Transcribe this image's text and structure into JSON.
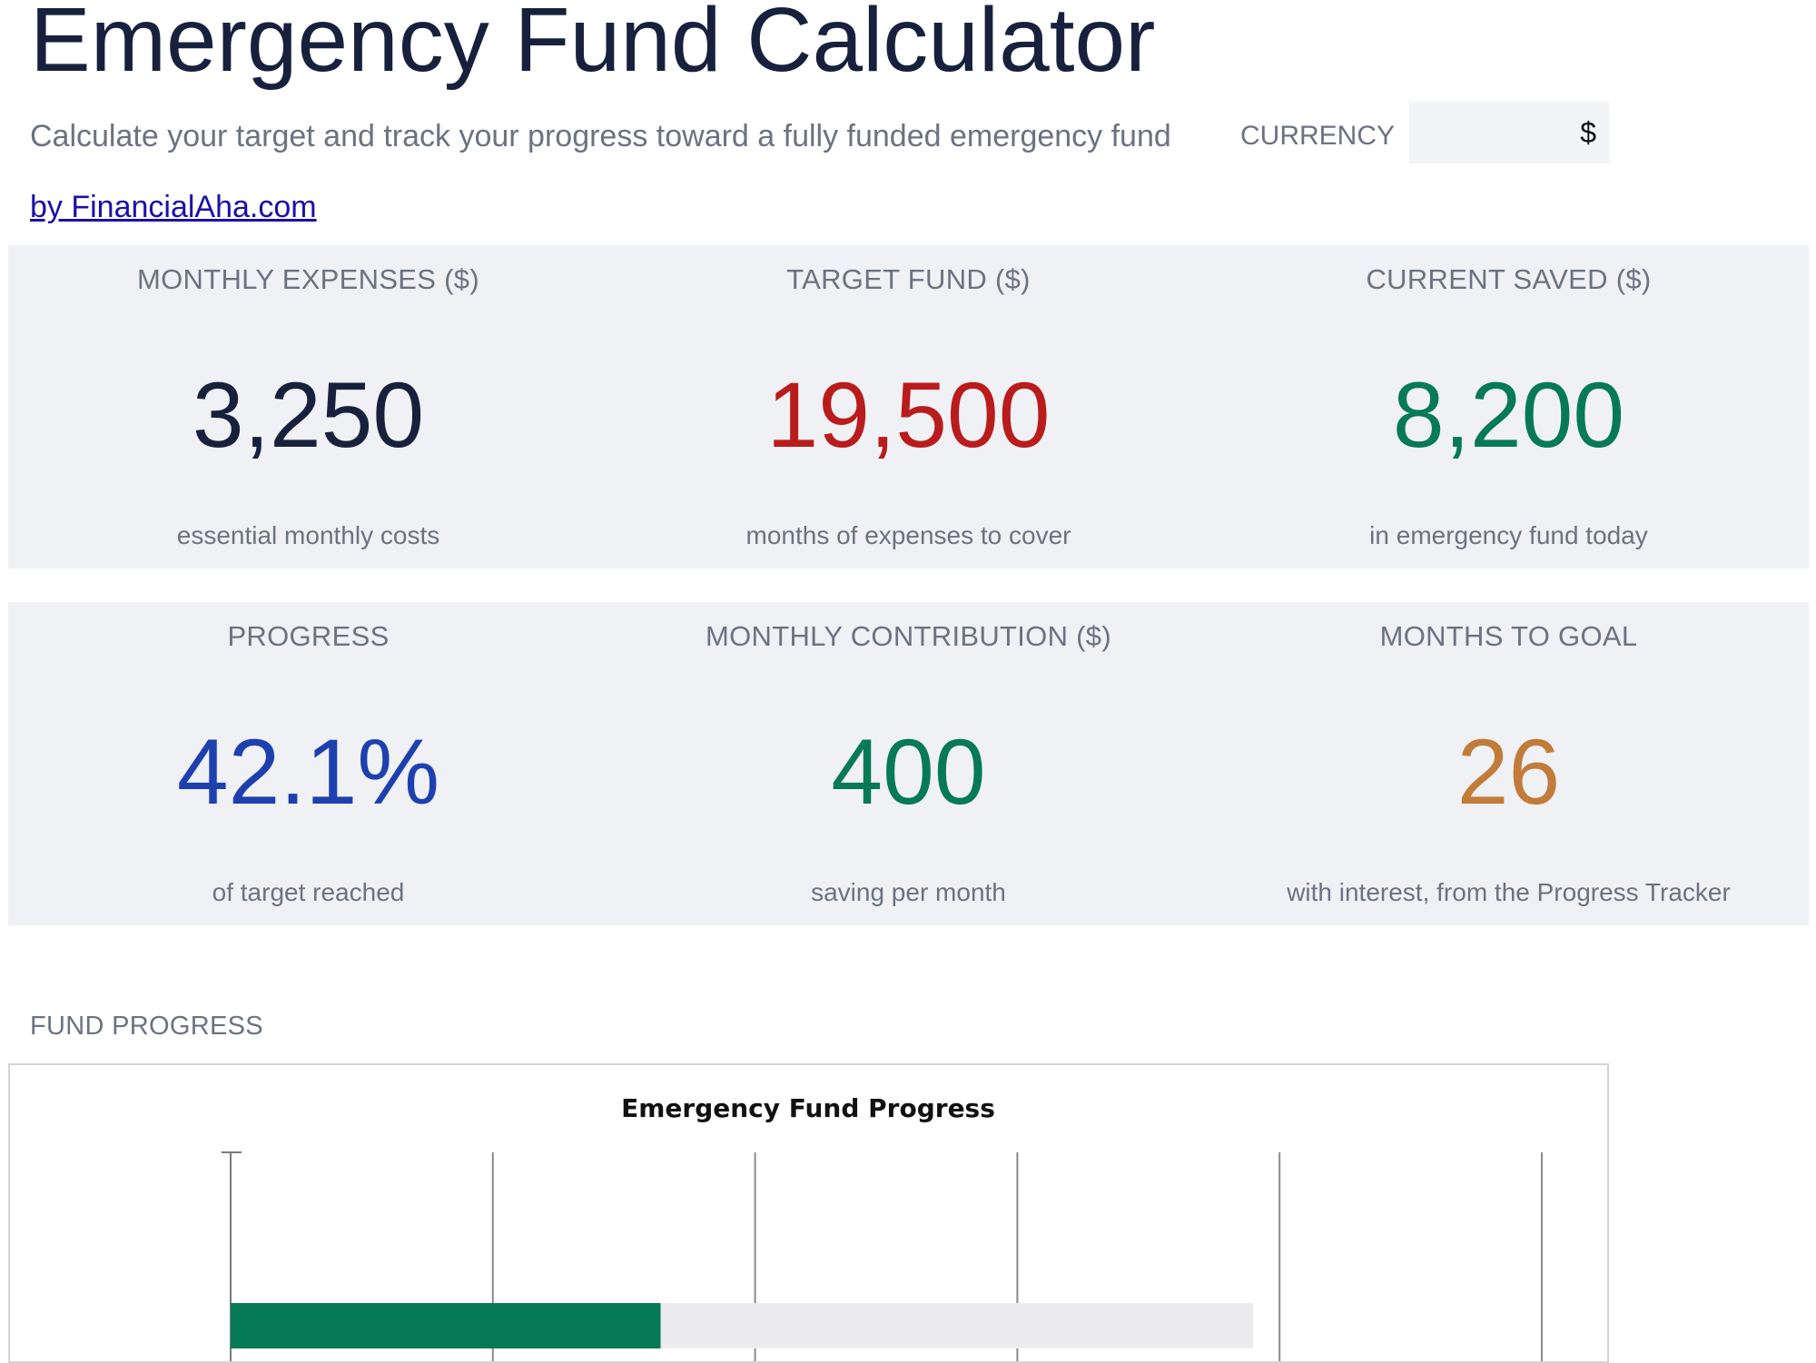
{
  "header": {
    "title": "Emergency Fund Calculator",
    "subtitle": "Calculate your target and track your progress toward a fully funded emergency fund",
    "byline": "by FinancialAha.com",
    "currency_label": "CURRENCY",
    "currency_value": "$"
  },
  "kpis_row1": [
    {
      "label": "MONTHLY EXPENSES ($)",
      "value": "3,250",
      "note": "essential monthly costs",
      "color": "#17213d"
    },
    {
      "label": "TARGET FUND ($)",
      "value": "19,500",
      "note": "months of expenses to cover",
      "color": "#b91c1c"
    },
    {
      "label": "CURRENT SAVED ($)",
      "value": "8,200",
      "note": "in emergency fund today",
      "color": "#067a55"
    }
  ],
  "kpis_row2": [
    {
      "label": "PROGRESS",
      "value": "42.1%",
      "note": "of target reached",
      "color": "#1e40af"
    },
    {
      "label": "MONTHLY CONTRIBUTION ($)",
      "value": "400",
      "note": "saving per month",
      "color": "#067a55"
    },
    {
      "label": "MONTHS TO GOAL",
      "value": "26",
      "note": "with interest, from the Progress Tracker",
      "color": "#c27c3a"
    }
  ],
  "section": {
    "fund_progress_label": "FUND PROGRESS"
  },
  "chart_data": {
    "type": "bar",
    "title": "Emergency Fund Progress",
    "orientation": "horizontal",
    "stacked": true,
    "xlim": [
      0,
      25000
    ],
    "grid": true,
    "series": [
      {
        "values": [
          8200
        ],
        "color": "#067a55"
      },
      {
        "values": [
          11300
        ],
        "color": "#ececef"
      }
    ]
  }
}
